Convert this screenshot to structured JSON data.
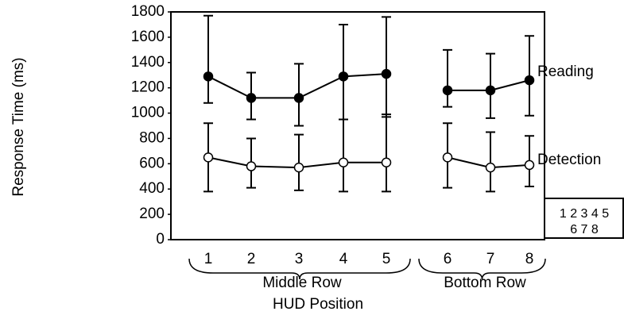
{
  "chart_data": {
    "type": "line",
    "y_label": "Response Time (ms)",
    "x_label": "HUD Position",
    "group_labels": [
      "Middle Row",
      "Bottom Row"
    ],
    "categories": [
      "1",
      "2",
      "3",
      "4",
      "5",
      null,
      "6",
      "7",
      "8"
    ],
    "series": [
      {
        "name": "Reading",
        "color": "#000000",
        "marker_fill": "#000000",
        "values": [
          1290,
          1120,
          1120,
          1290,
          1310,
          null,
          1180,
          1180,
          1260
        ],
        "upper": [
          1770,
          1320,
          1390,
          1700,
          1760,
          null,
          1500,
          1470,
          1610
        ],
        "lower": [
          1080,
          950,
          900,
          950,
          970,
          null,
          1050,
          960,
          980
        ]
      },
      {
        "name": "Detection",
        "color": "#000000",
        "marker_fill": "#ffffff",
        "values": [
          650,
          580,
          570,
          610,
          610,
          null,
          650,
          570,
          590
        ],
        "upper": [
          920,
          800,
          830,
          950,
          990,
          null,
          920,
          850,
          820
        ],
        "lower": [
          380,
          410,
          390,
          380,
          380,
          null,
          410,
          380,
          420
        ]
      }
    ],
    "ylim": [
      0,
      1800
    ],
    "yticks": [
      0,
      200,
      400,
      600,
      800,
      1000,
      1200,
      1400,
      1600,
      1800
    ],
    "inset_lines": [
      "1 2 3 4 5",
      "6 7 8"
    ]
  }
}
